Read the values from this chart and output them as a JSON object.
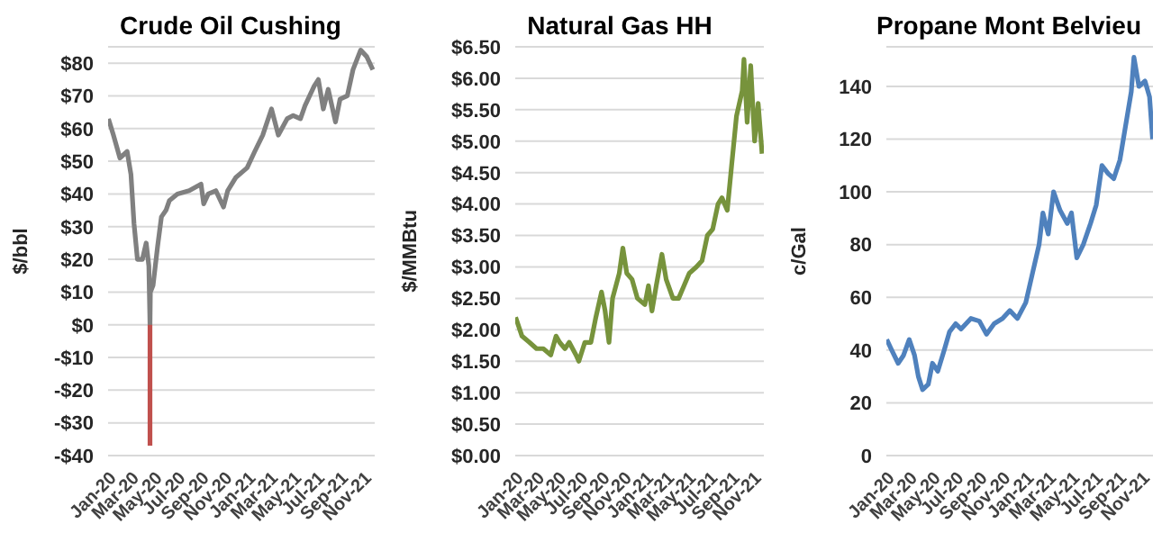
{
  "chart_data": [
    {
      "type": "line",
      "title": "Crude Oil Cushing",
      "ylabel": "$/bbl",
      "grid": "y",
      "marker": "none",
      "line_style": "solid",
      "xlim": [
        "2020-01-01",
        "2021-12-01"
      ],
      "xticks": [
        {
          "value": "2020-01-01",
          "label": "Jan-20"
        },
        {
          "value": "2020-03-01",
          "label": "Mar-20"
        },
        {
          "value": "2020-05-01",
          "label": "May-20"
        },
        {
          "value": "2020-07-01",
          "label": "Jul-20"
        },
        {
          "value": "2020-09-01",
          "label": "Sep-20"
        },
        {
          "value": "2020-11-01",
          "label": "Nov-20"
        },
        {
          "value": "2021-01-01",
          "label": "Jan-21"
        },
        {
          "value": "2021-03-01",
          "label": "Mar-21"
        },
        {
          "value": "2021-05-01",
          "label": "May-21"
        },
        {
          "value": "2021-07-01",
          "label": "Jul-21"
        },
        {
          "value": "2021-09-01",
          "label": "Sep-21"
        },
        {
          "value": "2021-11-01",
          "label": "Nov-21"
        }
      ],
      "ylim": [
        -40,
        85
      ],
      "yticks": [
        {
          "value": -40,
          "label": "-$40"
        },
        {
          "value": -30,
          "label": "-$30"
        },
        {
          "value": -20,
          "label": "-$20"
        },
        {
          "value": -10,
          "label": "-$10"
        },
        {
          "value": 0,
          "label": "$0"
        },
        {
          "value": 10,
          "label": "$10"
        },
        {
          "value": 20,
          "label": "$20"
        },
        {
          "value": 30,
          "label": "$30"
        },
        {
          "value": 40,
          "label": "$40"
        },
        {
          "value": 50,
          "label": "$50"
        },
        {
          "value": 60,
          "label": "$60"
        },
        {
          "value": 70,
          "label": "$70"
        },
        {
          "value": 80,
          "label": "$80"
        }
      ],
      "series": [
        {
          "color": "#808080",
          "x": [
            "2020-01-02",
            "2020-01-15",
            "2020-02-01",
            "2020-02-20",
            "2020-03-01",
            "2020-03-09",
            "2020-03-18",
            "2020-03-31",
            "2020-04-10",
            "2020-04-17",
            "2020-04-20",
            "2020-04-21",
            "2020-04-28",
            "2020-05-10",
            "2020-05-20",
            "2020-06-01",
            "2020-06-10",
            "2020-07-01",
            "2020-08-01",
            "2020-09-01",
            "2020-09-08",
            "2020-09-20",
            "2020-10-10",
            "2020-10-30",
            "2020-11-10",
            "2020-12-01",
            "2020-12-31",
            "2021-01-20",
            "2021-02-10",
            "2021-03-05",
            "2021-03-23",
            "2021-04-15",
            "2021-05-01",
            "2021-05-20",
            "2021-06-01",
            "2021-06-25",
            "2021-07-06",
            "2021-07-19",
            "2021-08-01",
            "2021-08-20",
            "2021-09-01",
            "2021-09-20",
            "2021-10-05",
            "2021-10-25",
            "2021-11-10",
            "2021-11-26"
          ],
          "values": [
            63,
            58,
            51,
            53,
            46,
            31,
            20,
            20,
            25,
            18,
            0,
            10,
            12,
            24,
            33,
            35,
            38,
            40,
            41,
            43,
            37,
            40,
            41,
            36,
            41,
            45,
            48,
            53,
            58,
            66,
            58,
            63,
            64,
            63,
            67,
            73,
            75,
            66,
            72,
            62,
            69,
            70,
            78,
            84,
            82,
            78
          ]
        },
        {
          "color": "#c0504d",
          "x": [
            "2020-04-20",
            "2020-04-20"
          ],
          "values": [
            0,
            -37
          ]
        }
      ]
    },
    {
      "type": "line",
      "title": "Natural Gas HH",
      "ylabel": "$/MMBtu",
      "grid": "y",
      "marker": "none",
      "line_style": "solid",
      "xlim": [
        "2020-01-01",
        "2021-12-01"
      ],
      "xticks": [
        {
          "value": "2020-01-01",
          "label": "Jan-20"
        },
        {
          "value": "2020-03-01",
          "label": "Mar-20"
        },
        {
          "value": "2020-05-01",
          "label": "May-20"
        },
        {
          "value": "2020-07-01",
          "label": "Jul-20"
        },
        {
          "value": "2020-09-01",
          "label": "Sep-20"
        },
        {
          "value": "2020-11-01",
          "label": "Nov-20"
        },
        {
          "value": "2021-01-01",
          "label": "Jan-21"
        },
        {
          "value": "2021-03-01",
          "label": "Mar-21"
        },
        {
          "value": "2021-05-01",
          "label": "May-21"
        },
        {
          "value": "2021-07-01",
          "label": "Jul-21"
        },
        {
          "value": "2021-09-01",
          "label": "Sep-21"
        },
        {
          "value": "2021-11-01",
          "label": "Nov-21"
        }
      ],
      "ylim": [
        0,
        6.5
      ],
      "yticks": [
        {
          "value": 0,
          "label": "$0.00"
        },
        {
          "value": 0.5,
          "label": "$0.50"
        },
        {
          "value": 1,
          "label": "$1.00"
        },
        {
          "value": 1.5,
          "label": "$1.50"
        },
        {
          "value": 2,
          "label": "$2.00"
        },
        {
          "value": 2.5,
          "label": "$2.50"
        },
        {
          "value": 3,
          "label": "$3.00"
        },
        {
          "value": 3.5,
          "label": "$3.50"
        },
        {
          "value": 4,
          "label": "$4.00"
        },
        {
          "value": 4.5,
          "label": "$4.50"
        },
        {
          "value": 5,
          "label": "$5.00"
        },
        {
          "value": 5.5,
          "label": "$5.50"
        },
        {
          "value": 6,
          "label": "$6.00"
        },
        {
          "value": 6.5,
          "label": "$6.50"
        }
      ],
      "series": [
        {
          "color": "#77933c",
          "x": [
            "2020-01-02",
            "2020-01-20",
            "2020-02-10",
            "2020-03-01",
            "2020-03-20",
            "2020-04-10",
            "2020-04-25",
            "2020-05-05",
            "2020-05-20",
            "2020-06-01",
            "2020-06-20",
            "2020-06-28",
            "2020-07-15",
            "2020-08-01",
            "2020-08-15",
            "2020-08-31",
            "2020-09-10",
            "2020-09-21",
            "2020-10-01",
            "2020-10-20",
            "2020-10-30",
            "2020-11-10",
            "2020-11-25",
            "2020-12-10",
            "2020-12-31",
            "2021-01-10",
            "2021-01-20",
            "2021-02-01",
            "2021-02-17",
            "2021-03-01",
            "2021-03-20",
            "2021-04-05",
            "2021-04-20",
            "2021-05-05",
            "2021-05-25",
            "2021-06-10",
            "2021-06-25",
            "2021-07-10",
            "2021-07-25",
            "2021-08-05",
            "2021-08-20",
            "2021-09-01",
            "2021-09-15",
            "2021-10-01",
            "2021-10-06",
            "2021-10-15",
            "2021-10-25",
            "2021-11-05",
            "2021-11-15",
            "2021-11-26"
          ],
          "values": [
            2.2,
            1.9,
            1.8,
            1.7,
            1.7,
            1.6,
            1.9,
            1.8,
            1.7,
            1.8,
            1.6,
            1.5,
            1.8,
            1.8,
            2.2,
            2.6,
            2.3,
            1.8,
            2.5,
            2.9,
            3.3,
            2.9,
            2.8,
            2.5,
            2.4,
            2.7,
            2.3,
            2.7,
            3.2,
            2.8,
            2.5,
            2.5,
            2.7,
            2.9,
            3.0,
            3.1,
            3.5,
            3.6,
            4.0,
            4.1,
            3.9,
            4.6,
            5.4,
            5.8,
            6.3,
            5.3,
            6.2,
            5.0,
            5.6,
            4.8
          ]
        }
      ]
    },
    {
      "type": "line",
      "title": "Propane Mont Belvieu",
      "ylabel": "c/Gal",
      "grid": "y",
      "marker": "none",
      "line_style": "solid",
      "xlim": [
        "2020-01-01",
        "2021-12-01"
      ],
      "xticks": [
        {
          "value": "2020-01-01",
          "label": "Jan-20"
        },
        {
          "value": "2020-03-01",
          "label": "Mar-20"
        },
        {
          "value": "2020-05-01",
          "label": "May-20"
        },
        {
          "value": "2020-07-01",
          "label": "Jul-20"
        },
        {
          "value": "2020-09-01",
          "label": "Sep-20"
        },
        {
          "value": "2020-11-01",
          "label": "Nov-20"
        },
        {
          "value": "2021-01-01",
          "label": "Jan-21"
        },
        {
          "value": "2021-03-01",
          "label": "Mar-21"
        },
        {
          "value": "2021-05-01",
          "label": "May-21"
        },
        {
          "value": "2021-07-01",
          "label": "Jul-21"
        },
        {
          "value": "2021-09-01",
          "label": "Sep-21"
        },
        {
          "value": "2021-11-01",
          "label": "Nov-21"
        }
      ],
      "ylim": [
        0,
        155
      ],
      "yticks": [
        0,
        20,
        40,
        60,
        80,
        100,
        120,
        140
      ],
      "series": [
        {
          "color": "#4f81bd",
          "x": [
            "2020-01-02",
            "2020-01-15",
            "2020-02-01",
            "2020-02-15",
            "2020-03-01",
            "2020-03-15",
            "2020-03-25",
            "2020-04-05",
            "2020-04-20",
            "2020-05-01",
            "2020-05-15",
            "2020-06-01",
            "2020-06-15",
            "2020-07-01",
            "2020-07-15",
            "2020-08-10",
            "2020-09-01",
            "2020-09-20",
            "2020-10-10",
            "2020-11-01",
            "2020-11-20",
            "2020-12-10",
            "2021-01-01",
            "2021-01-20",
            "2021-02-05",
            "2021-02-15",
            "2021-03-01",
            "2021-03-15",
            "2021-04-01",
            "2021-04-20",
            "2021-05-01",
            "2021-05-15",
            "2021-06-01",
            "2021-06-20",
            "2021-07-05",
            "2021-07-20",
            "2021-08-05",
            "2021-08-20",
            "2021-09-05",
            "2021-09-20",
            "2021-10-05",
            "2021-10-12",
            "2021-10-25",
            "2021-11-10",
            "2021-11-22",
            "2021-11-30"
          ],
          "values": [
            44,
            40,
            35,
            38,
            44,
            38,
            30,
            25,
            27,
            35,
            32,
            40,
            47,
            50,
            48,
            52,
            51,
            46,
            50,
            52,
            55,
            52,
            58,
            70,
            80,
            92,
            84,
            100,
            93,
            88,
            92,
            75,
            80,
            88,
            95,
            110,
            107,
            105,
            112,
            125,
            138,
            151,
            140,
            142,
            136,
            120
          ]
        }
      ]
    }
  ]
}
